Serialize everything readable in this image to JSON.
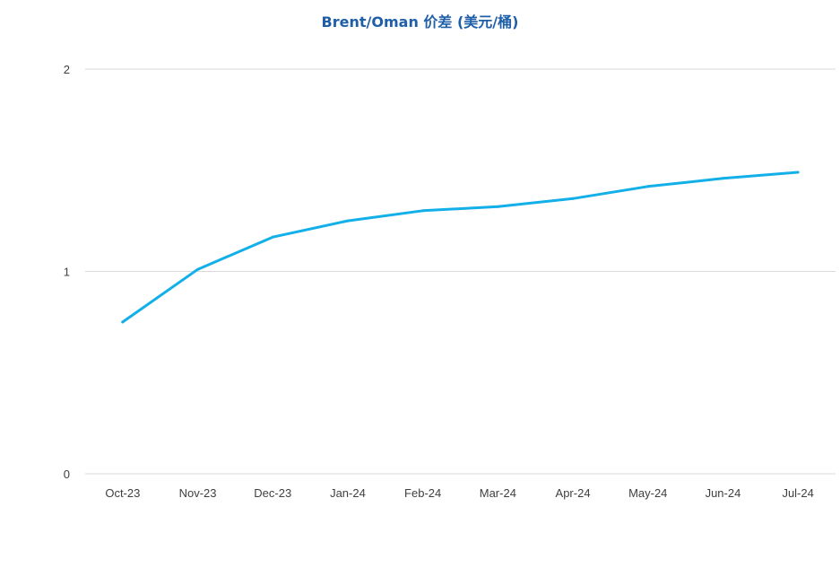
{
  "chart_data": {
    "type": "line",
    "title": "Brent/Oman 价差 (美元/桶)",
    "xlabel": "",
    "ylabel": "",
    "categories": [
      "Oct-23",
      "Nov-23",
      "Dec-23",
      "Jan-24",
      "Feb-24",
      "Mar-24",
      "Apr-24",
      "May-24",
      "Jun-24",
      "Jul-24"
    ],
    "series": [
      {
        "values": [
          0.75,
          1.01,
          1.17,
          1.25,
          1.3,
          1.32,
          1.36,
          1.42,
          1.46,
          1.49
        ],
        "color": "#13afe8"
      }
    ],
    "ylim": [
      0,
      2
    ],
    "yticks": [
      "0",
      "1",
      "2"
    ],
    "grid": true,
    "legend": "none"
  }
}
